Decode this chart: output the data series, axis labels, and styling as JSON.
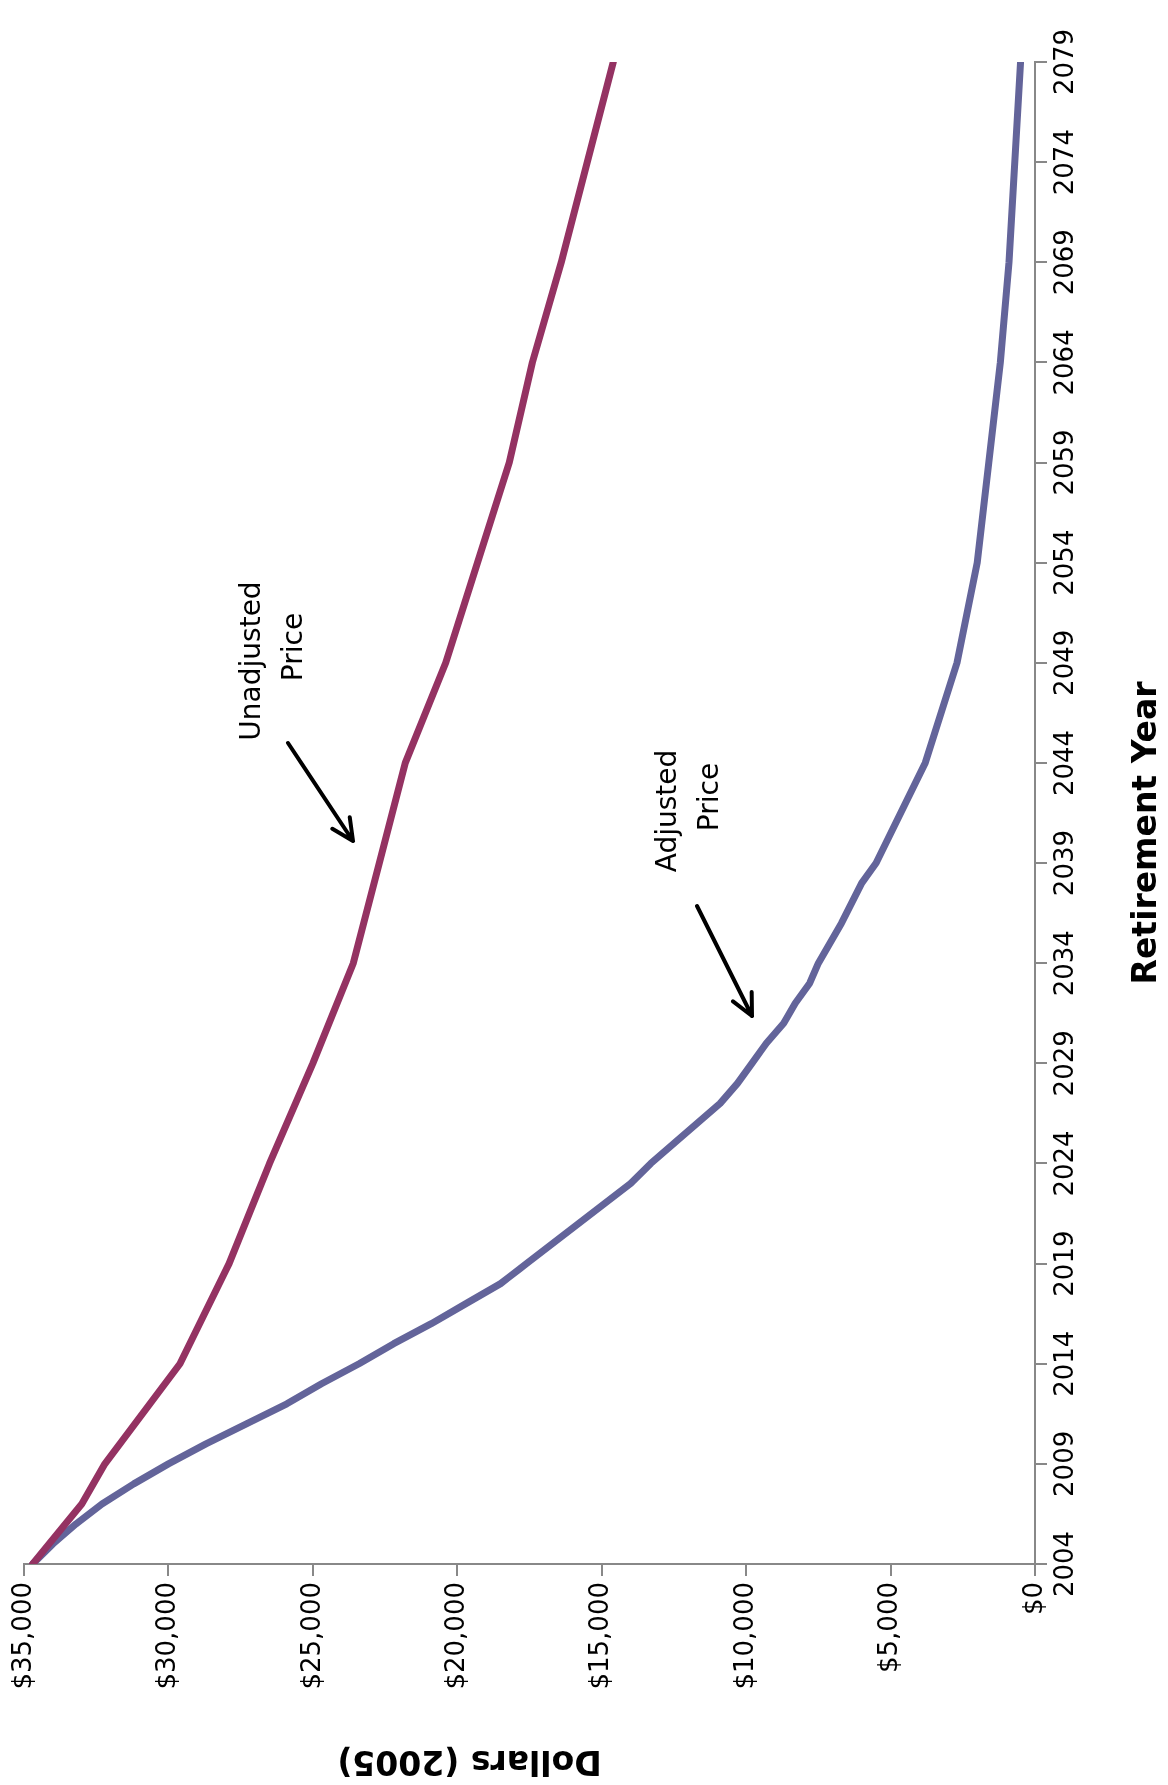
{
  "chart_data": {
    "type": "line",
    "xlabel": "Dollars (2005)",
    "ylabel": "Retirement Year",
    "ylim": [
      2004,
      2079
    ],
    "yticks": [
      2004,
      2009,
      2014,
      2019,
      2024,
      2029,
      2034,
      2039,
      2044,
      2049,
      2054,
      2059,
      2064,
      2069,
      2074,
      2079
    ],
    "xlim": [
      35000,
      0
    ],
    "xticks": [
      {
        "value": 35000,
        "label": "$35,000"
      },
      {
        "value": 30000,
        "label": "$30,000"
      },
      {
        "value": 25000,
        "label": "$25,000"
      },
      {
        "value": 20000,
        "label": "$20,000"
      },
      {
        "value": 15000,
        "label": "$15,000"
      },
      {
        "value": 10000,
        "label": "$10,000"
      },
      {
        "value": 5000,
        "label": "$5,000"
      },
      {
        "value": 0,
        "label": "$0"
      }
    ],
    "grid": false,
    "legend": false,
    "marker": "none",
    "line_style": "solid",
    "series": [
      {
        "color": "#943262",
        "values": [
          2004,
          2007,
          2009,
          2014,
          2019,
          2024,
          2029,
          2034,
          2039,
          2044,
          2049,
          2054,
          2059,
          2064,
          2069,
          2074,
          2079
        ],
        "x": [
          34700,
          33000,
          32200,
          29600,
          27900,
          26500,
          25000,
          23600,
          22700,
          21800,
          20400,
          19300,
          18200,
          17400,
          16400,
          15500,
          14600
        ]
      },
      {
        "color": "#63649a",
        "values": [
          2004,
          2005,
          2006,
          2007,
          2008,
          2009,
          2010,
          2011,
          2012,
          2013,
          2014,
          2015,
          2016,
          2017,
          2018,
          2019,
          2020,
          2021,
          2022,
          2023,
          2024,
          2025,
          2026,
          2027,
          2028,
          2029,
          2030,
          2031,
          2032,
          2033,
          2034,
          2036,
          2038,
          2039,
          2044,
          2049,
          2054,
          2059,
          2064,
          2069,
          2074,
          2079
        ],
        "x": [
          34700,
          34000,
          33200,
          32300,
          31200,
          30000,
          28700,
          27300,
          25900,
          24700,
          23400,
          22200,
          20900,
          19700,
          18500,
          17600,
          16700,
          15800,
          14900,
          14000,
          13300,
          12500,
          11700,
          10900,
          10300,
          9800,
          9300,
          8700,
          8300,
          7800,
          7500,
          6700,
          6000,
          5500,
          3800,
          2700,
          2000,
          1600,
          1200,
          900,
          700,
          500
        ]
      }
    ],
    "annotations": [
      "Unadjusted Price",
      "Adjusted Price"
    ]
  }
}
